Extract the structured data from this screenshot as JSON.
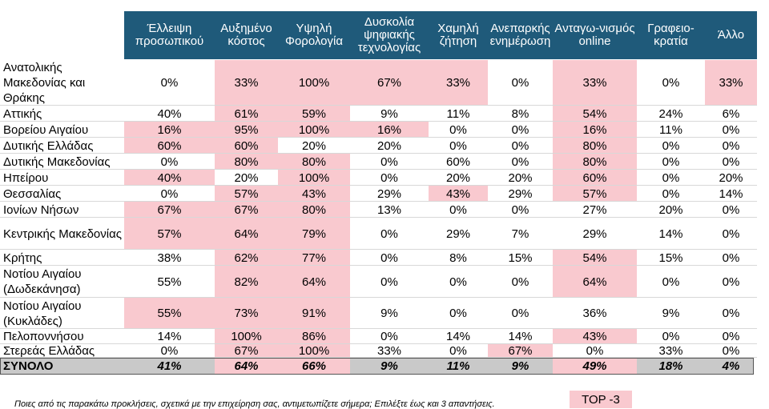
{
  "chart_data": {
    "type": "table",
    "title": "",
    "columns": [
      "Έλλειψη προσωπικού",
      "Αυξημένο κόστος",
      "Υψηλή Φορολογία",
      "Δυσκολία ψηφιακής τεχνολογίας",
      "Χαμηλή ζήτηση",
      "Ανεπαρκής ενημέρωση",
      "Ανταγω-νισμός online",
      "Γραφειο-κρατία",
      "Άλλο"
    ],
    "rows": [
      {
        "label": "Ανατολικής Μακεδονίας και Θράκης",
        "values": [
          "0%",
          "33%",
          "100%",
          "67%",
          "33%",
          "0%",
          "33%",
          "0%",
          "33%"
        ],
        "highlight": [
          false,
          true,
          true,
          true,
          true,
          false,
          true,
          false,
          true
        ]
      },
      {
        "label": "Αττικής",
        "values": [
          "40%",
          "61%",
          "59%",
          "9%",
          "11%",
          "8%",
          "54%",
          "24%",
          "6%"
        ],
        "highlight": [
          false,
          true,
          true,
          false,
          false,
          false,
          true,
          false,
          false
        ]
      },
      {
        "label": "Βορείου Αιγαίου",
        "values": [
          "16%",
          "95%",
          "100%",
          "16%",
          "0%",
          "0%",
          "16%",
          "11%",
          "0%"
        ],
        "highlight": [
          true,
          true,
          true,
          true,
          false,
          false,
          true,
          false,
          false
        ]
      },
      {
        "label": "Δυτικής Ελλάδας",
        "values": [
          "60%",
          "60%",
          "20%",
          "20%",
          "0%",
          "0%",
          "80%",
          "0%",
          "0%"
        ],
        "highlight": [
          true,
          true,
          false,
          false,
          false,
          false,
          true,
          false,
          false
        ]
      },
      {
        "label": "Δυτικής Μακεδονίας",
        "values": [
          "0%",
          "80%",
          "80%",
          "0%",
          "60%",
          "0%",
          "80%",
          "0%",
          "0%"
        ],
        "highlight": [
          false,
          true,
          true,
          false,
          false,
          false,
          true,
          false,
          false
        ]
      },
      {
        "label": "Ηπείρου",
        "values": [
          "40%",
          "20%",
          "100%",
          "0%",
          "20%",
          "20%",
          "60%",
          "0%",
          "20%"
        ],
        "highlight": [
          true,
          false,
          true,
          false,
          false,
          false,
          true,
          false,
          false
        ]
      },
      {
        "label": "Θεσσαλίας",
        "values": [
          "0%",
          "57%",
          "43%",
          "29%",
          "43%",
          "29%",
          "57%",
          "0%",
          "14%"
        ],
        "highlight": [
          false,
          true,
          true,
          false,
          true,
          false,
          true,
          false,
          false
        ]
      },
      {
        "label": "Ιονίων Νήσων",
        "values": [
          "67%",
          "67%",
          "80%",
          "13%",
          "0%",
          "0%",
          "27%",
          "20%",
          "0%"
        ],
        "highlight": [
          true,
          true,
          true,
          false,
          false,
          false,
          false,
          false,
          false
        ]
      },
      {
        "label": "Κεντρικής Μακεδονίας",
        "values": [
          "57%",
          "64%",
          "79%",
          "0%",
          "29%",
          "7%",
          "29%",
          "14%",
          "0%"
        ],
        "highlight": [
          true,
          true,
          true,
          false,
          false,
          false,
          false,
          false,
          false
        ]
      },
      {
        "label": "Κρήτης",
        "values": [
          "38%",
          "62%",
          "77%",
          "0%",
          "8%",
          "15%",
          "54%",
          "15%",
          "0%"
        ],
        "highlight": [
          false,
          true,
          true,
          false,
          false,
          false,
          true,
          false,
          false
        ]
      },
      {
        "label": "Νοτίου Αιγαίου (Δωδεκάνησα)",
        "values": [
          "55%",
          "82%",
          "64%",
          "0%",
          "0%",
          "0%",
          "64%",
          "0%",
          "0%"
        ],
        "highlight": [
          false,
          true,
          true,
          false,
          false,
          false,
          true,
          false,
          false
        ]
      },
      {
        "label": "Νοτίου Αιγαίου (Κυκλάδες)",
        "values": [
          "55%",
          "73%",
          "91%",
          "9%",
          "0%",
          "0%",
          "36%",
          "9%",
          "0%"
        ],
        "highlight": [
          true,
          true,
          true,
          false,
          false,
          false,
          false,
          false,
          false
        ]
      },
      {
        "label": "Πελοποννήσου",
        "values": [
          "14%",
          "100%",
          "86%",
          "0%",
          "14%",
          "14%",
          "43%",
          "0%",
          "0%"
        ],
        "highlight": [
          false,
          true,
          true,
          false,
          false,
          false,
          true,
          false,
          false
        ]
      },
      {
        "label": "Στερεάς Ελλάδας",
        "values": [
          "0%",
          "67%",
          "100%",
          "33%",
          "0%",
          "67%",
          "0%",
          "33%",
          "0%"
        ],
        "highlight": [
          false,
          true,
          true,
          false,
          false,
          true,
          false,
          false,
          false
        ]
      }
    ],
    "total": {
      "label": "ΣΥΝΟΛΟ",
      "values": [
        "41%",
        "64%",
        "66%",
        "9%",
        "11%",
        "9%",
        "49%",
        "18%",
        "4%"
      ],
      "highlight": [
        false,
        true,
        true,
        false,
        false,
        false,
        true,
        false,
        false
      ]
    }
  },
  "footnote": "Ποιες από τις παρακάτω προκλήσεις, σχετικά με την επιχείρηση σας, αντιμετωπίζετε σήμερα; Επιλέξτε έως και 3 απαντήσεις.",
  "legend": "TOP -3",
  "colors": {
    "header_bg": "#1f5a7a",
    "highlight": "#f9c9cf",
    "total_bg": "#c9c9c9"
  }
}
